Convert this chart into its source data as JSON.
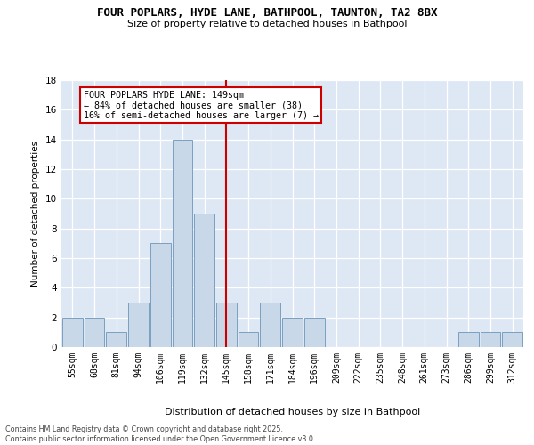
{
  "title": "FOUR POPLARS, HYDE LANE, BATHPOOL, TAUNTON, TA2 8BX",
  "subtitle": "Size of property relative to detached houses in Bathpool",
  "xlabel": "Distribution of detached houses by size in Bathpool",
  "ylabel": "Number of detached properties",
  "bin_labels": [
    "55sqm",
    "68sqm",
    "81sqm",
    "94sqm",
    "106sqm",
    "119sqm",
    "132sqm",
    "145sqm",
    "158sqm",
    "171sqm",
    "184sqm",
    "196sqm",
    "209sqm",
    "222sqm",
    "235sqm",
    "248sqm",
    "261sqm",
    "273sqm",
    "286sqm",
    "299sqm",
    "312sqm"
  ],
  "bar_values": [
    2,
    2,
    1,
    3,
    7,
    14,
    9,
    3,
    1,
    3,
    2,
    2,
    0,
    0,
    0,
    0,
    0,
    0,
    1,
    1,
    1
  ],
  "bar_color": "#c8d8e8",
  "bar_edge_color": "#7aa0c0",
  "vline_x": 7.0,
  "vline_color": "#cc0000",
  "annotation_title": "FOUR POPLARS HYDE LANE: 149sqm",
  "annotation_line1": "← 84% of detached houses are smaller (38)",
  "annotation_line2": "16% of semi-detached houses are larger (7) →",
  "annotation_box_color": "#cc0000",
  "ylim": [
    0,
    18
  ],
  "yticks": [
    0,
    2,
    4,
    6,
    8,
    10,
    12,
    14,
    16,
    18
  ],
  "background_color": "#dde8f4",
  "footer_line1": "Contains HM Land Registry data © Crown copyright and database right 2025.",
  "footer_line2": "Contains public sector information licensed under the Open Government Licence v3.0."
}
